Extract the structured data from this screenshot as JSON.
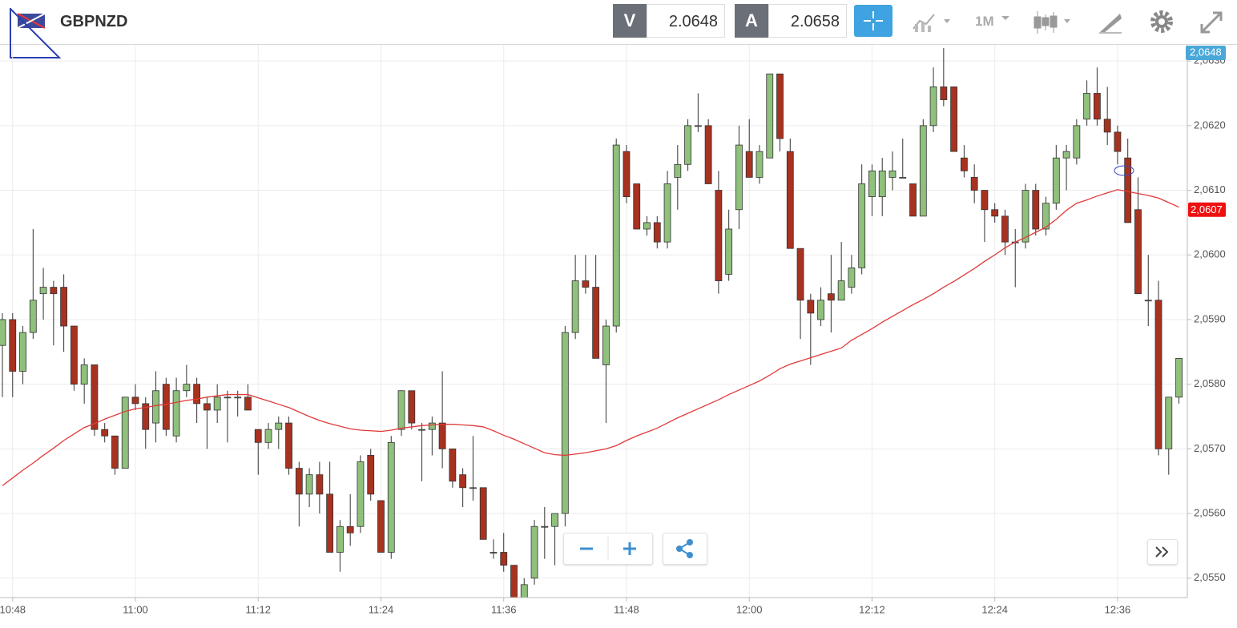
{
  "header": {
    "symbol": "GBPNZD",
    "bid_label": "V",
    "bid": "2.0648",
    "ask_label": "A",
    "ask": "2.0658",
    "timeframe": "1M"
  },
  "chart_data": {
    "type": "candlestick",
    "x": [
      "10:47",
      "10:48",
      "10:49",
      "10:50",
      "10:51",
      "10:52",
      "10:53",
      "10:54",
      "10:55",
      "10:56",
      "10:57",
      "10:58",
      "10:59",
      "11:00",
      "11:01",
      "11:02",
      "11:03",
      "11:04",
      "11:05",
      "11:06",
      "11:07",
      "11:08",
      "11:09",
      "11:10",
      "11:11",
      "11:12",
      "11:13",
      "11:14",
      "11:15",
      "11:16",
      "11:17",
      "11:18",
      "11:19",
      "11:20",
      "11:21",
      "11:22",
      "11:23",
      "11:24",
      "11:25",
      "11:26",
      "11:27",
      "11:28",
      "11:29",
      "11:30",
      "11:31",
      "11:32",
      "11:33",
      "11:34",
      "11:35",
      "11:36",
      "11:37",
      "11:38",
      "11:39",
      "11:40",
      "11:41",
      "11:42",
      "11:43",
      "11:44",
      "11:45",
      "11:46",
      "11:47",
      "11:48",
      "11:49",
      "11:50",
      "11:51",
      "11:52",
      "11:53",
      "11:54",
      "11:55",
      "11:56",
      "11:57",
      "11:58",
      "11:59",
      "12:00",
      "12:01",
      "12:02",
      "12:03",
      "12:04",
      "12:05",
      "12:06",
      "12:07",
      "12:08",
      "12:09",
      "12:10",
      "12:11",
      "12:12",
      "12:13",
      "12:14",
      "12:15",
      "12:16",
      "12:17",
      "12:18",
      "12:19",
      "12:20",
      "12:21",
      "12:22",
      "12:23",
      "12:24",
      "12:25",
      "12:26",
      "12:27",
      "12:28",
      "12:29",
      "12:30",
      "12:31",
      "12:32",
      "12:33",
      "12:34",
      "12:35",
      "12:36",
      "12:37",
      "12:38",
      "12:39",
      "12:40",
      "12:41",
      "12:42"
    ],
    "open": [
      2.0586,
      2.059,
      2.0582,
      2.0588,
      2.0594,
      2.0595,
      2.0595,
      2.0589,
      2.058,
      2.0583,
      2.0573,
      2.0572,
      2.0567,
      2.0578,
      2.0577,
      2.0574,
      2.058,
      2.0572,
      2.0579,
      2.058,
      2.0577,
      2.0576,
      2.0578,
      2.0578,
      2.0578,
      2.0573,
      2.0571,
      2.0573,
      2.0574,
      2.0567,
      2.0563,
      2.0566,
      2.0563,
      2.0554,
      2.0558,
      2.0558,
      2.0569,
      2.0562,
      2.0554,
      2.0573,
      2.0579,
      2.0573,
      2.0573,
      2.0574,
      2.057,
      2.0566,
      2.0564,
      2.0564,
      2.0554,
      2.0554,
      2.0552,
      2.0547,
      2.055,
      2.0558,
      2.0558,
      2.056,
      2.0588,
      2.0596,
      2.0595,
      2.0583,
      2.0589,
      2.0616,
      2.0611,
      2.0604,
      2.0605,
      2.0602,
      2.0612,
      2.0614,
      2.062,
      2.062,
      2.061,
      2.0597,
      2.0607,
      2.0616,
      2.0612,
      2.0615,
      2.0628,
      2.0616,
      2.0601,
      2.0593,
      2.059,
      2.0594,
      2.0593,
      2.0595,
      2.0598,
      2.0609,
      2.0609,
      2.0612,
      2.0612,
      2.0611,
      2.0606,
      2.062,
      2.0626,
      2.0626,
      2.0615,
      2.0612,
      2.061,
      2.0607,
      2.0606,
      2.0602,
      2.0602,
      2.061,
      2.0604,
      2.0608,
      2.0615,
      2.0615,
      2.0621,
      2.0625,
      2.0621,
      2.0619,
      2.0615,
      2.0607,
      2.0593,
      2.0593,
      2.057,
      2.0578
    ],
    "high": [
      2.0591,
      2.0591,
      2.0589,
      2.0604,
      2.0598,
      2.0596,
      2.0597,
      2.0589,
      2.0584,
      2.0583,
      2.0574,
      2.0572,
      2.0578,
      2.058,
      2.0578,
      2.0582,
      2.0581,
      2.0581,
      2.0583,
      2.0581,
      2.0578,
      2.058,
      2.0579,
      2.0579,
      2.058,
      2.0573,
      2.0574,
      2.0575,
      2.0575,
      2.0568,
      2.0567,
      2.0568,
      2.0568,
      2.0559,
      2.0563,
      2.0569,
      2.057,
      2.0562,
      2.0572,
      2.0579,
      2.0579,
      2.0574,
      2.0575,
      2.0582,
      2.057,
      2.0567,
      2.0572,
      2.0564,
      2.0556,
      2.0557,
      2.0552,
      2.055,
      2.0559,
      2.0561,
      2.056,
      2.0589,
      2.06,
      2.06,
      2.06,
      2.059,
      2.0618,
      2.0617,
      2.0611,
      2.0606,
      2.0606,
      2.0613,
      2.0617,
      2.0621,
      2.0625,
      2.0621,
      2.0613,
      2.0607,
      2.062,
      2.0621,
      2.0617,
      2.0628,
      2.0628,
      2.0618,
      2.0601,
      2.0594,
      2.0595,
      2.06,
      2.0602,
      2.06,
      2.0614,
      2.0614,
      2.0615,
      2.0616,
      2.0618,
      2.0611,
      2.0621,
      2.0629,
      2.0632,
      2.0626,
      2.0617,
      2.0614,
      2.061,
      2.0608,
      2.0607,
      2.0604,
      2.0611,
      2.0611,
      2.0609,
      2.0617,
      2.0617,
      2.0621,
      2.0627,
      2.0629,
      2.0626,
      2.062,
      2.0618,
      2.0612,
      2.06,
      2.0596,
      2.0578,
      2.0584
    ],
    "low": [
      2.0578,
      2.0578,
      2.058,
      2.0587,
      2.059,
      2.0586,
      2.0585,
      2.0579,
      2.0577,
      2.0572,
      2.0571,
      2.0566,
      2.0567,
      2.0576,
      2.057,
      2.0571,
      2.0572,
      2.0571,
      2.0578,
      2.0574,
      2.057,
      2.0574,
      2.0571,
      2.0575,
      2.0576,
      2.0566,
      2.057,
      2.057,
      2.0566,
      2.0558,
      2.0561,
      2.056,
      2.0554,
      2.0551,
      2.0555,
      2.0557,
      2.0562,
      2.0554,
      2.0553,
      2.0572,
      2.0573,
      2.0565,
      2.0569,
      2.0567,
      2.0564,
      2.0561,
      2.0562,
      2.0556,
      2.0553,
      2.0551,
      2.0547,
      2.0547,
      2.0549,
      2.0553,
      2.0552,
      2.0558,
      2.0587,
      2.0594,
      2.0584,
      2.0574,
      2.0588,
      2.0608,
      2.0604,
      2.0603,
      2.0601,
      2.0601,
      2.0607,
      2.0613,
      2.0619,
      2.0611,
      2.0594,
      2.0596,
      2.0604,
      2.0612,
      2.0611,
      2.0615,
      2.0616,
      2.0601,
      2.0587,
      2.0583,
      2.0589,
      2.0588,
      2.0593,
      2.0594,
      2.0597,
      2.0606,
      2.0606,
      2.061,
      2.0612,
      2.0606,
      2.0606,
      2.0619,
      2.0623,
      2.0616,
      2.0612,
      2.0608,
      2.0602,
      2.0605,
      2.06,
      2.0595,
      2.0601,
      2.0603,
      2.0603,
      2.0607,
      2.061,
      2.0614,
      2.062,
      2.062,
      2.0617,
      2.0614,
      2.0605,
      2.0594,
      2.0589,
      2.0569,
      2.0566,
      2.0577
    ],
    "close": [
      2.059,
      2.0582,
      2.0588,
      2.0593,
      2.0595,
      2.0594,
      2.0589,
      2.058,
      2.0583,
      2.0573,
      2.0572,
      2.0567,
      2.0578,
      2.0577,
      2.0573,
      2.0579,
      2.0573,
      2.0579,
      2.058,
      2.0577,
      2.0576,
      2.0578,
      2.0578,
      2.0578,
      2.0576,
      2.0571,
      2.0573,
      2.0574,
      2.0567,
      2.0563,
      2.0566,
      2.0563,
      2.0554,
      2.0558,
      2.0557,
      2.0568,
      2.0563,
      2.0554,
      2.0571,
      2.0579,
      2.0574,
      2.0573,
      2.0574,
      2.057,
      2.0565,
      2.0564,
      2.0564,
      2.0556,
      2.0554,
      2.0552,
      2.0547,
      2.0549,
      2.0558,
      2.0558,
      2.056,
      2.0588,
      2.0596,
      2.0595,
      2.0584,
      2.0589,
      2.0617,
      2.0609,
      2.0604,
      2.0605,
      2.0602,
      2.0611,
      2.0614,
      2.062,
      2.062,
      2.0611,
      2.0596,
      2.0604,
      2.0617,
      2.0612,
      2.0616,
      2.0628,
      2.0618,
      2.0601,
      2.0593,
      2.0591,
      2.0593,
      2.0593,
      2.0596,
      2.0598,
      2.0611,
      2.0613,
      2.0613,
      2.0613,
      2.0612,
      2.0606,
      2.062,
      2.0626,
      2.0624,
      2.0616,
      2.0613,
      2.061,
      2.0607,
      2.0606,
      2.0602,
      2.0602,
      2.061,
      2.0604,
      2.0608,
      2.0615,
      2.0616,
      2.062,
      2.0625,
      2.0621,
      2.0619,
      2.0616,
      2.0605,
      2.0594,
      2.0593,
      2.057,
      2.0578,
      2.0584
    ],
    "up_color": "#8fc07c",
    "down_color": "#a83220",
    "ma": {
      "color": "#e03a3a",
      "values": [
        2.05643,
        2.05655,
        2.05667,
        2.05678,
        2.0569,
        2.05701,
        2.05713,
        2.05723,
        2.05733,
        2.05739,
        2.05746,
        2.05752,
        2.05758,
        2.05762,
        2.05764,
        2.05767,
        2.05769,
        2.05772,
        2.05775,
        2.05777,
        2.0578,
        2.05782,
        2.05784,
        2.05784,
        2.05784,
        2.05779,
        2.05774,
        2.05769,
        2.05764,
        2.05757,
        2.0575,
        2.05744,
        2.05739,
        2.05735,
        2.05731,
        2.05729,
        2.05728,
        2.05727,
        2.05729,
        2.05732,
        2.05734,
        2.05736,
        2.05737,
        2.05738,
        2.05738,
        2.05737,
        2.05736,
        2.05734,
        2.05728,
        2.05721,
        2.05715,
        2.05708,
        2.05701,
        2.05694,
        2.05691,
        2.0569,
        2.05692,
        2.05694,
        2.05697,
        2.057,
        2.05705,
        2.05713,
        2.0572,
        2.05726,
        2.05732,
        2.0574,
        2.05748,
        2.05755,
        2.05762,
        2.05769,
        2.05776,
        2.05784,
        2.05791,
        2.05798,
        2.05805,
        2.05814,
        2.05824,
        2.05831,
        2.05836,
        2.05841,
        2.05846,
        2.05851,
        2.05856,
        2.05868,
        2.05877,
        2.05886,
        2.05896,
        2.05905,
        2.05914,
        2.05923,
        2.05931,
        2.0594,
        2.0595,
        2.05959,
        2.05969,
        2.05979,
        2.0599,
        2.06,
        2.06011,
        2.0602,
        2.06027,
        2.06035,
        2.06043,
        2.06055,
        2.06069,
        2.0608,
        2.06085,
        2.06091,
        2.06096,
        2.06101,
        2.06098,
        2.06095,
        2.06092,
        2.06088,
        2.06081,
        2.06074
      ]
    },
    "ylim": [
      2.0547,
      2.0632
    ],
    "yticks": [
      {
        "value": 2.055,
        "label": "2,0550"
      },
      {
        "value": 2.056,
        "label": "2,0560"
      },
      {
        "value": 2.057,
        "label": "2,0570"
      },
      {
        "value": 2.058,
        "label": "2,0580"
      },
      {
        "value": 2.059,
        "label": "2,0590"
      },
      {
        "value": 2.06,
        "label": "2,0600"
      },
      {
        "value": 2.061,
        "label": "2,0610"
      },
      {
        "value": 2.062,
        "label": "2,0620"
      },
      {
        "value": 2.063,
        "label": "2,0630"
      }
    ],
    "xticks": [
      "10:48",
      "11:00",
      "11:12",
      "11:24",
      "11:36",
      "11:48",
      "12:00",
      "12:12",
      "12:24",
      "12:36"
    ],
    "grid": true,
    "top_price_label": "2,0648",
    "top_price_color": "#4aa8d8",
    "ma_price_tag": {
      "value": 2.0607,
      "label": "2,0607",
      "color": "#ee1111"
    }
  }
}
